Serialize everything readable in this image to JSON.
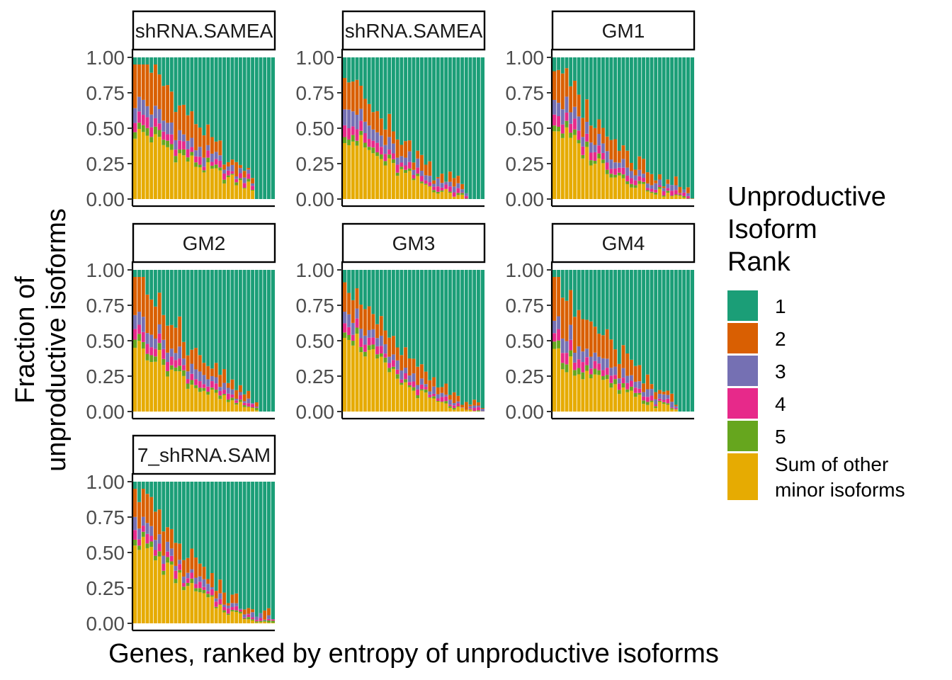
{
  "chart_data": {
    "type": "bar",
    "stacked": true,
    "x_label": "Genes, ranked by entropy of unproductive isoforms",
    "y_label": "Fraction of unproductive isoforms",
    "y_ticks": [
      "0.00",
      "0.25",
      "0.50",
      "0.75",
      "1.00"
    ],
    "ylim": [
      0,
      1
    ],
    "n_genes": 35,
    "legend_title": "Unproductive Isoform Rank",
    "legend": [
      {
        "key": "1",
        "label": "1",
        "color": "#1B9E77"
      },
      {
        "key": "2",
        "label": "2",
        "color": "#D95F02"
      },
      {
        "key": "3",
        "label": "3",
        "color": "#7570B3"
      },
      {
        "key": "4",
        "label": "4",
        "color": "#E7298A"
      },
      {
        "key": "5",
        "label": "5",
        "color": "#66A61E"
      },
      {
        "key": "other",
        "label": "Sum of other minor isoforms",
        "color": "#E6AB02"
      }
    ],
    "panels": [
      {
        "strip": "shRNA.SAMEA",
        "params": {
          "o": 0.52,
          "d2": 0.22,
          "d3": 0.07,
          "d4": 0.05,
          "d5": 0.04,
          "end": 0.6,
          "empty": 5
        }
      },
      {
        "strip": "shRNA.SAMEA",
        "params": {
          "o": 0.48,
          "d2": 0.16,
          "d3": 0.08,
          "d4": 0.05,
          "d5": 0.03,
          "end": 0.82,
          "empty": 4
        }
      },
      {
        "strip": "GM1",
        "params": {
          "o": 0.52,
          "d2": 0.16,
          "d3": 0.07,
          "d4": 0.05,
          "d5": 0.03,
          "end": 0.92,
          "empty": 0
        }
      },
      {
        "strip": "GM2",
        "params": {
          "o": 0.52,
          "d2": 0.2,
          "d3": 0.07,
          "d4": 0.05,
          "d5": 0.04,
          "end": 0.82,
          "empty": 4
        }
      },
      {
        "strip": "GM3",
        "params": {
          "o": 0.6,
          "d2": 0.14,
          "d3": 0.06,
          "d4": 0.04,
          "d5": 0.03,
          "end": 1.0,
          "empty": 0
        }
      },
      {
        "strip": "GM4",
        "params": {
          "o": 0.42,
          "d2": 0.22,
          "d3": 0.07,
          "d4": 0.05,
          "d5": 0.04,
          "end": 0.78,
          "empty": 4
        }
      },
      {
        "strip": "7_shRNA.SAM",
        "params": {
          "o": 0.62,
          "d2": 0.13,
          "d3": 0.05,
          "d4": 0.04,
          "d5": 0.03,
          "end": 0.92,
          "empty": 0
        }
      }
    ]
  }
}
